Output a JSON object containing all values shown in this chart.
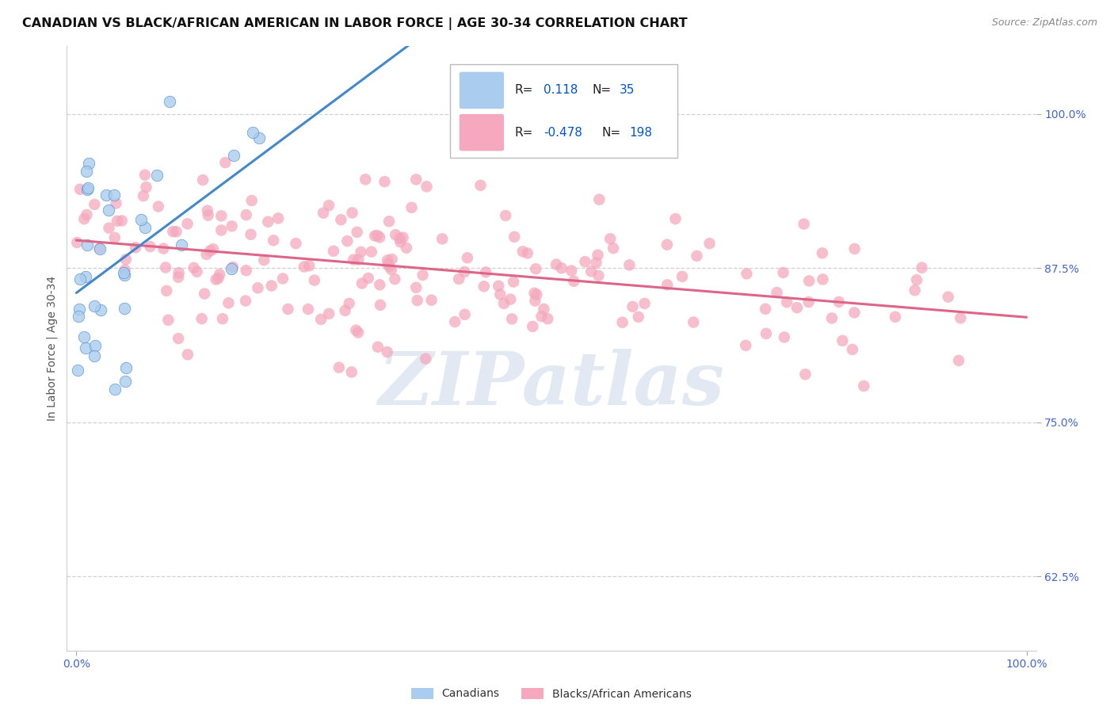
{
  "title": "CANADIAN VS BLACK/AFRICAN AMERICAN IN LABOR FORCE | AGE 30-34 CORRELATION CHART",
  "source": "Source: ZipAtlas.com",
  "ylabel": "In Labor Force | Age 30-34",
  "xlim": [
    -0.01,
    1.01
  ],
  "ylim": [
    0.565,
    1.055
  ],
  "yticks": [
    0.625,
    0.75,
    0.875,
    1.0
  ],
  "ytick_labels": [
    "62.5%",
    "75.0%",
    "87.5%",
    "100.0%"
  ],
  "xtick_positions": [
    0.0,
    1.0
  ],
  "xtick_labels": [
    "0.0%",
    "100.0%"
  ],
  "canadian_R": 0.118,
  "canadian_N": 35,
  "black_R": -0.478,
  "black_N": 198,
  "canadian_color": "#aaccee",
  "black_color": "#f5a8be",
  "canadian_line_color": "#4488cc",
  "black_line_color": "#dd6688",
  "watermark_color": "#ccd8e8",
  "watermark": "ZIPatlas",
  "background_color": "#ffffff",
  "grid_color": "#cccccc",
  "title_fontsize": 11.5,
  "axis_label_fontsize": 10,
  "tick_fontsize": 10,
  "label_color": "#4466cc",
  "canadian_seed": 42,
  "black_seed": 77,
  "legend_R_color": "#0055cc",
  "legend_text_color": "#222222"
}
